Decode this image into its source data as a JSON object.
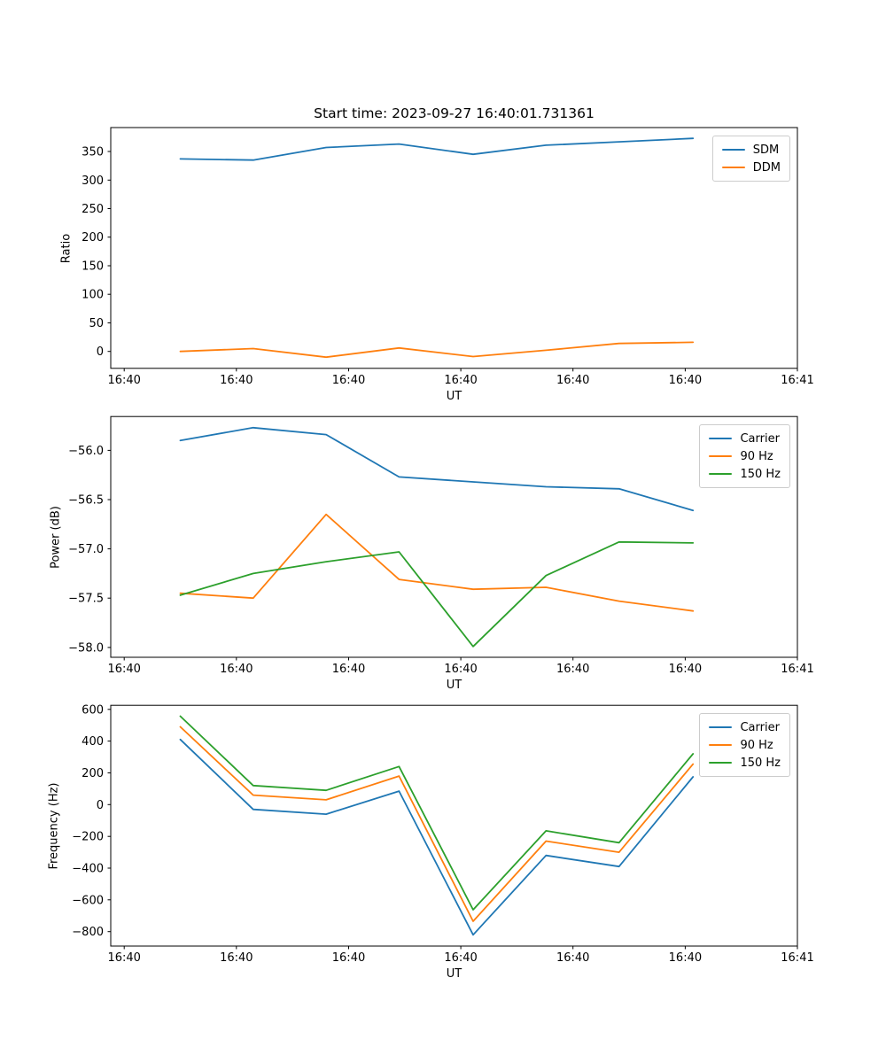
{
  "style": {
    "axis_color": "#000000",
    "text_color": "#000000",
    "legend_border_color": "#cccccc",
    "background": "#ffffff"
  },
  "chart_data": [
    {
      "type": "line",
      "title": "Start time: 2023-09-27 16:40:01.731361",
      "xlabel": "UT",
      "ylabel": "Ratio",
      "grid": false,
      "legend_loc": "upper right",
      "xlim": [
        -1.2,
        60.0
      ],
      "ylim": [
        -29.6,
        391.9
      ],
      "x": [
        5.0,
        11.5,
        18.0,
        24.5,
        31.1,
        37.6,
        44.1,
        50.7
      ],
      "xticks": [
        {
          "v": 0,
          "label": "16:40"
        },
        {
          "v": 10,
          "label": "16:40"
        },
        {
          "v": 20,
          "label": "16:40"
        },
        {
          "v": 30,
          "label": "16:40"
        },
        {
          "v": 40,
          "label": "16:40"
        },
        {
          "v": 50,
          "label": "16:40"
        },
        {
          "v": 60,
          "label": "16:41"
        }
      ],
      "yticks": [
        {
          "v": 0,
          "label": "0"
        },
        {
          "v": 50,
          "label": "50"
        },
        {
          "v": 100,
          "label": "100"
        },
        {
          "v": 150,
          "label": "150"
        },
        {
          "v": 200,
          "label": "200"
        },
        {
          "v": 250,
          "label": "250"
        },
        {
          "v": 300,
          "label": "300"
        },
        {
          "v": 350,
          "label": "350"
        }
      ],
      "series": [
        {
          "name": "SDM",
          "color": "#1f77b4",
          "values": [
            337,
            335,
            357,
            363,
            345,
            361,
            367,
            373
          ]
        },
        {
          "name": "DDM",
          "color": "#ff7f0e",
          "values": [
            0,
            5,
            -10,
            6,
            -9,
            2,
            14,
            16
          ]
        }
      ]
    },
    {
      "type": "line",
      "title": "",
      "xlabel": "UT",
      "ylabel": "Power (dB)",
      "grid": false,
      "legend_loc": "upper right",
      "xlim": [
        -1.2,
        60.0
      ],
      "ylim": [
        -58.1,
        -55.657
      ],
      "x": [
        5.0,
        11.5,
        18.0,
        24.5,
        31.1,
        37.6,
        44.1,
        50.7
      ],
      "xticks": [
        {
          "v": 0,
          "label": "16:40"
        },
        {
          "v": 10,
          "label": "16:40"
        },
        {
          "v": 20,
          "label": "16:40"
        },
        {
          "v": 30,
          "label": "16:40"
        },
        {
          "v": 40,
          "label": "16:40"
        },
        {
          "v": 50,
          "label": "16:40"
        },
        {
          "v": 60,
          "label": "16:41"
        }
      ],
      "yticks": [
        {
          "v": -56.0,
          "label": "−56.0"
        },
        {
          "v": -56.5,
          "label": "−56.5"
        },
        {
          "v": -57.0,
          "label": "−57.0"
        },
        {
          "v": -57.5,
          "label": "−57.5"
        },
        {
          "v": -58.0,
          "label": "−58.0"
        }
      ],
      "series": [
        {
          "name": "Carrier",
          "color": "#1f77b4",
          "values": [
            -55.9,
            -55.77,
            -55.84,
            -56.27,
            -56.32,
            -56.37,
            -56.39,
            -56.61
          ]
        },
        {
          "name": "90 Hz",
          "color": "#ff7f0e",
          "values": [
            -57.45,
            -57.5,
            -56.65,
            -57.31,
            -57.41,
            -57.39,
            -57.53,
            -57.63
          ]
        },
        {
          "name": "150 Hz",
          "color": "#2ca02c",
          "values": [
            -57.47,
            -57.25,
            -57.13,
            -57.03,
            -57.99,
            -57.27,
            -56.93,
            -56.94
          ]
        }
      ]
    },
    {
      "type": "line",
      "title": "",
      "xlabel": "UT",
      "ylabel": "Frequency (Hz)",
      "grid": false,
      "legend_loc": "upper right",
      "xlim": [
        -1.2,
        60.0
      ],
      "ylim": [
        -891,
        625.6
      ],
      "x": [
        5.0,
        11.5,
        18.0,
        24.5,
        31.1,
        37.6,
        44.1,
        50.7
      ],
      "xticks": [
        {
          "v": 0,
          "label": "16:40"
        },
        {
          "v": 10,
          "label": "16:40"
        },
        {
          "v": 20,
          "label": "16:40"
        },
        {
          "v": 30,
          "label": "16:40"
        },
        {
          "v": 40,
          "label": "16:40"
        },
        {
          "v": 50,
          "label": "16:40"
        },
        {
          "v": 60,
          "label": "16:41"
        }
      ],
      "yticks": [
        {
          "v": 600,
          "label": "600"
        },
        {
          "v": 400,
          "label": "400"
        },
        {
          "v": 200,
          "label": "200"
        },
        {
          "v": 0,
          "label": "0"
        },
        {
          "v": -200,
          "label": "−200"
        },
        {
          "v": -400,
          "label": "−400"
        },
        {
          "v": -600,
          "label": "−600"
        },
        {
          "v": -800,
          "label": "−800"
        }
      ],
      "series": [
        {
          "name": "Carrier",
          "color": "#1f77b4",
          "values": [
            410,
            -30,
            -60,
            85,
            -820,
            -320,
            -390,
            175
          ]
        },
        {
          "name": "90 Hz",
          "color": "#ff7f0e",
          "values": [
            490,
            60,
            30,
            180,
            -735,
            -230,
            -300,
            255
          ]
        },
        {
          "name": "150 Hz",
          "color": "#2ca02c",
          "values": [
            557,
            120,
            90,
            240,
            -662,
            -165,
            -240,
            320
          ]
        }
      ]
    }
  ]
}
